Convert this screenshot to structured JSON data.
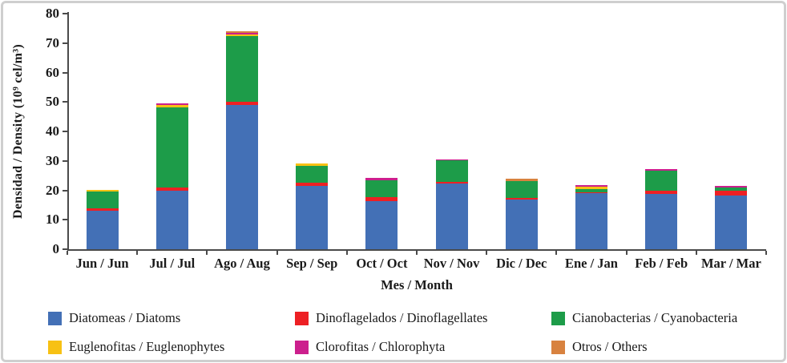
{
  "figure": {
    "background": "#ffffff",
    "frame_border_color": "#cfcfcf",
    "axis_color": "#4a4a4a"
  },
  "chart_data": {
    "type": "bar",
    "stacked": true,
    "title": "",
    "xlabel": "Mes / Month",
    "ylabel": "Densidad / Density (10⁹ cel/m³)",
    "ylim": [
      0,
      80
    ],
    "yticks": [
      0,
      10,
      20,
      30,
      40,
      50,
      60,
      70,
      80
    ],
    "grid": false,
    "legend_position": "bottom",
    "categories": [
      "Jun / Jun",
      "Jul / Jul",
      "Ago / Aug",
      "Sep / Sep",
      "Oct / Oct",
      "Nov / Nov",
      "Dic / Dec",
      "Ene / Jan",
      "Feb / Feb",
      "Mar / Mar"
    ],
    "series": [
      {
        "name": "Diatomeas / Diatoms",
        "slug": "diatoms",
        "color": "#4370B6",
        "values": [
          13.0,
          20.0,
          49.0,
          21.5,
          16.3,
          22.2,
          16.8,
          19.0,
          18.7,
          18.2
        ]
      },
      {
        "name": "Dinoflagelados / Dinoflagellates",
        "slug": "dinoflagellates",
        "color": "#ED2024",
        "values": [
          0.8,
          1.0,
          1.0,
          1.0,
          1.3,
          0.7,
          0.7,
          0.2,
          1.1,
          1.6
        ]
      },
      {
        "name": "Cianobacterias / Cyanobacteria",
        "slug": "cyanobacteria",
        "color": "#1D9C49",
        "values": [
          5.7,
          27.3,
          22.4,
          5.8,
          5.9,
          7.2,
          5.7,
          1.1,
          7.0,
          1.1
        ]
      },
      {
        "name": "Euglenofitas / Euglenophytes",
        "slug": "euglenophytes",
        "color": "#F7C114",
        "values": [
          0.6,
          0.7,
          0.4,
          0.8,
          0.0,
          0.0,
          0.0,
          0.8,
          0.0,
          0.0
        ]
      },
      {
        "name": "Clorofitas / Chlorophyta",
        "slug": "chlorophyta",
        "color": "#CC1F8D",
        "values": [
          0.0,
          0.5,
          0.6,
          0.0,
          0.6,
          0.5,
          0.0,
          0.6,
          0.5,
          0.6
        ]
      },
      {
        "name": "Otros / Others",
        "slug": "others",
        "color": "#D8823F",
        "values": [
          0.0,
          0.0,
          0.6,
          0.0,
          0.0,
          0.0,
          0.8,
          0.0,
          0.0,
          0.0
        ]
      }
    ]
  }
}
